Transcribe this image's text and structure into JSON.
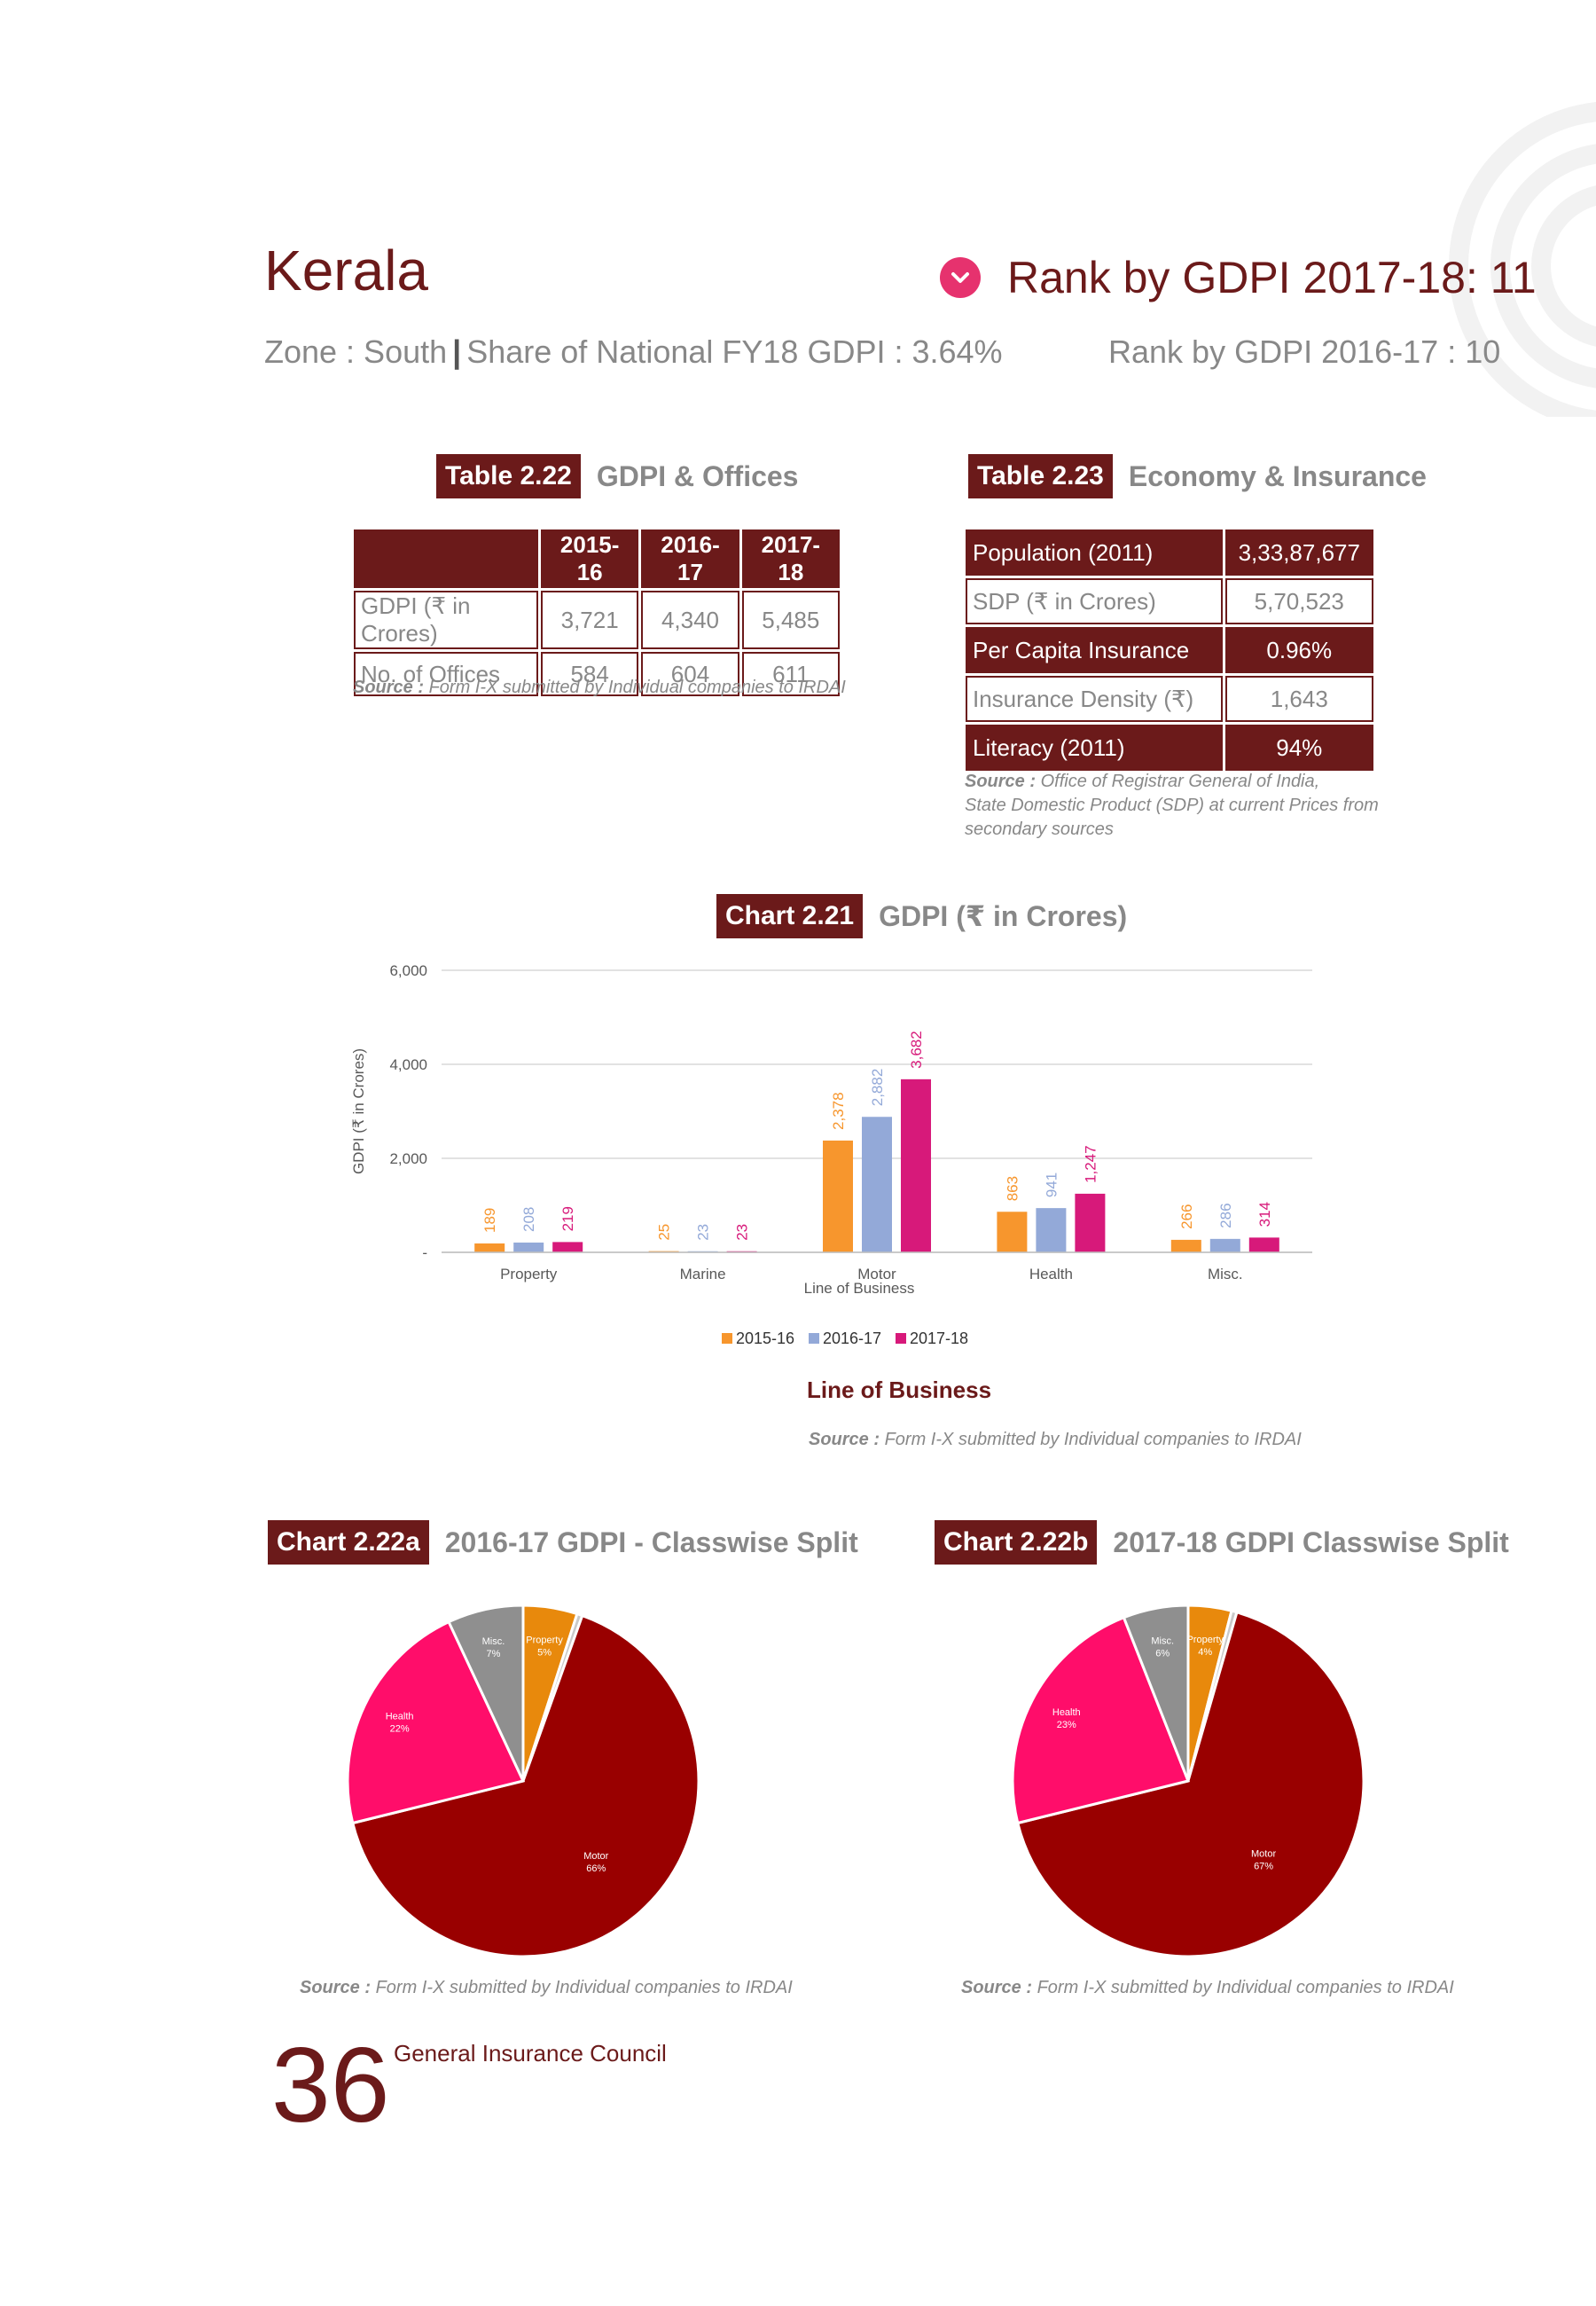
{
  "header": {
    "title": "Kerala",
    "zone": "Zone : South",
    "share": "Share of National FY18 GDPI : 3.64%",
    "rank_main": "Rank by GDPI 2017-18: 11",
    "rank_prev": "Rank by GDPI 2016-17 : 10"
  },
  "table_2_22": {
    "tag": "Table 2.22",
    "title": "GDPI & Offices",
    "columns": [
      "2015-16",
      "2016-17",
      "2017-18"
    ],
    "rows": [
      {
        "label": "GDPI (₹ in Crores)",
        "values": [
          "3,721",
          "4,340",
          "5,485"
        ]
      },
      {
        "label": "No. of Offices",
        "values": [
          "584",
          "604",
          "611"
        ]
      }
    ],
    "source_label": "Source :",
    "source_text": "Form I-X submitted by Individual companies to IRDAI"
  },
  "table_2_23": {
    "tag": "Table 2.23",
    "title": "Economy & Insurance",
    "rows": [
      {
        "label": "Population (2011)",
        "value": "3,33,87,677"
      },
      {
        "label": "SDP (₹ in Crores)",
        "value": "5,70,523"
      },
      {
        "label": "Per Capita Insurance",
        "value": "0.96%"
      },
      {
        "label": "Insurance Density (₹)",
        "value": "1,643"
      },
      {
        "label": "Literacy (2011)",
        "value": "94%"
      }
    ],
    "source_label": "Source :",
    "source_line1": "Office of Registrar General of India,",
    "source_line2": "State Domestic Product (SDP) at current Prices from",
    "source_line3": "secondary sources"
  },
  "chart_2_21": {
    "tag": "Chart 2.21",
    "title": "GDPI (₹ in Crores)",
    "line_of_business": "Line of Business",
    "source_label": "Source :",
    "source_text": "Form I-X submitted by Individual companies to IRDAI"
  },
  "chart_2_22a": {
    "tag": "Chart 2.22a",
    "title": "2016-17 GDPI - Classwise Split",
    "source_label": "Source :",
    "source_text": "Form I-X submitted by Individual companies to IRDAI"
  },
  "chart_2_22b": {
    "tag": "Chart 2.22b",
    "title": "2017-18 GDPI Classwise Split",
    "source_label": "Source :",
    "source_text": "Form I-X submitted by Individual companies to IRDAI"
  },
  "chart_data": [
    {
      "type": "bar",
      "categories": [
        "Property",
        "Marine",
        "Motor",
        "Health",
        "Misc."
      ],
      "series": [
        {
          "name": "2015-16",
          "values": [
            189,
            25,
            2378,
            863,
            266
          ],
          "labels": [
            "189",
            "25",
            "2,378",
            "863",
            "266"
          ],
          "color": "#f7962d"
        },
        {
          "name": "2016-17",
          "values": [
            208,
            23,
            2882,
            941,
            286
          ],
          "labels": [
            "208",
            "23",
            "2,882",
            "941",
            "286"
          ],
          "color": "#93a9d8"
        },
        {
          "name": "2017-18",
          "values": [
            219,
            23,
            3682,
            1247,
            314
          ],
          "labels": [
            "219",
            "23",
            "3,682",
            "1,247",
            "314"
          ],
          "color": "#d7197a"
        }
      ],
      "ylim": [
        0,
        6000
      ],
      "yticks": [
        "-",
        "2,000",
        "4,000",
        "6,000"
      ],
      "ylabel": "GDPI (₹ in Crores)",
      "xlabel": "Line of Business",
      "legend": "bottom"
    },
    {
      "type": "pie",
      "slices": [
        {
          "label": "Property",
          "pct_text": "5%",
          "value": 5,
          "color": "#e8890c"
        },
        {
          "label": "",
          "pct_text": "",
          "value": 0.5,
          "color": "#c9c9c9"
        },
        {
          "label": "Motor",
          "pct_text": "66%",
          "value": 66,
          "color": "#990000"
        },
        {
          "label": "Health",
          "pct_text": "22%",
          "value": 22,
          "color": "#ff0d6a"
        },
        {
          "label": "Misc.",
          "pct_text": "7%",
          "value": 7,
          "color": "#8f8f8f"
        }
      ]
    },
    {
      "type": "pie",
      "slices": [
        {
          "label": "Property",
          "pct_text": "4%",
          "value": 4,
          "color": "#e8890c"
        },
        {
          "label": "",
          "pct_text": "",
          "value": 0.5,
          "color": "#c9c9c9"
        },
        {
          "label": "Motor",
          "pct_text": "67%",
          "value": 67,
          "color": "#990000"
        },
        {
          "label": "Health",
          "pct_text": "23%",
          "value": 23,
          "color": "#ff0d6a"
        },
        {
          "label": "Misc.",
          "pct_text": "6%",
          "value": 6,
          "color": "#8f8f8f"
        }
      ]
    }
  ],
  "footer": {
    "page_number": "36",
    "text": "General Insurance Council"
  }
}
